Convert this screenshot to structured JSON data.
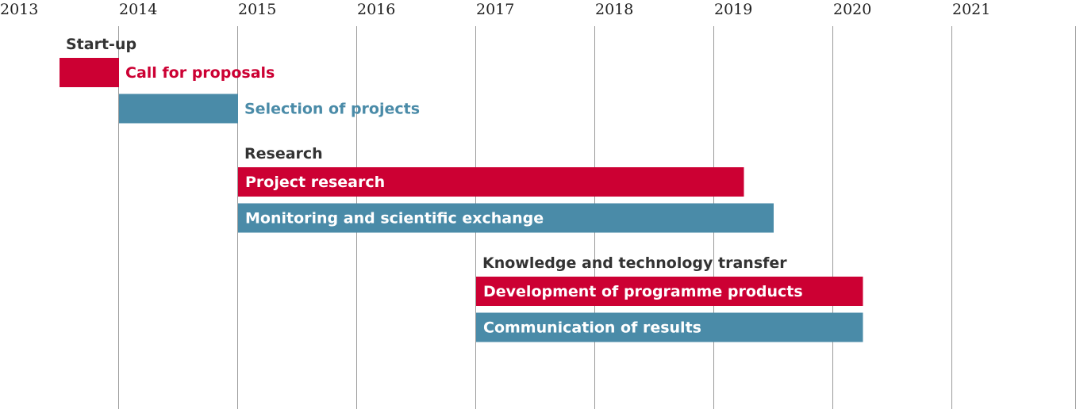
{
  "colors": {
    "red": "#cc0033",
    "blue": "#4a8ba8",
    "grid": "#9a9a9a",
    "text": "#333333"
  },
  "chart_data": {
    "type": "gantt",
    "x_axis": {
      "ticks": [
        "2013",
        "2014",
        "2015",
        "2016",
        "2017",
        "2018",
        "2019",
        "2020",
        "2021"
      ],
      "xlim": [
        2013,
        2022
      ]
    },
    "grid": true,
    "groups": [
      {
        "label": "Start-up",
        "tasks": [
          {
            "label": "Call for proposals",
            "start": 2013.5,
            "end": 2014.0,
            "color": "red",
            "label_position": "outside"
          },
          {
            "label": "Selection of projects",
            "start": 2014.0,
            "end": 2015.0,
            "color": "blue",
            "label_position": "outside"
          }
        ]
      },
      {
        "label": "Research",
        "tasks": [
          {
            "label": "Project research",
            "start": 2015.0,
            "end": 2019.25,
            "color": "red",
            "label_position": "inside"
          },
          {
            "label": "Monitoring and scientific exchange",
            "start": 2015.0,
            "end": 2019.5,
            "color": "blue",
            "label_position": "inside"
          }
        ]
      },
      {
        "label": "Knowledge and technology transfer",
        "tasks": [
          {
            "label": "Development of programme products",
            "start": 2017.0,
            "end": 2020.25,
            "color": "red",
            "label_position": "inside"
          },
          {
            "label": "Communication of results",
            "start": 2017.0,
            "end": 2020.25,
            "color": "blue",
            "label_position": "inside"
          }
        ]
      }
    ]
  }
}
